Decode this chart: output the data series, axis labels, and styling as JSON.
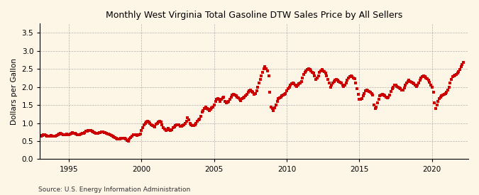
{
  "title": "Monthly West Virginia Total Gasoline DTW Sales Price by All Sellers",
  "ylabel": "Dollars per Gallon",
  "source": "Source: U.S. Energy Information Administration",
  "background_color": "#fdf5e6",
  "line_color": "#cc0000",
  "marker": "s",
  "markersize": 2.5,
  "xlim": [
    1993.0,
    2022.5
  ],
  "ylim": [
    0.0,
    3.75
  ],
  "yticks": [
    0.0,
    0.5,
    1.0,
    1.5,
    2.0,
    2.5,
    3.0,
    3.5
  ],
  "xticks": [
    1995,
    2000,
    2005,
    2010,
    2015,
    2020
  ],
  "dates": [
    1993.0,
    1993.083,
    1993.167,
    1993.25,
    1993.333,
    1993.417,
    1993.5,
    1993.583,
    1993.667,
    1993.75,
    1993.833,
    1993.917,
    1994.0,
    1994.083,
    1994.167,
    1994.25,
    1994.333,
    1994.417,
    1994.5,
    1994.583,
    1994.667,
    1994.75,
    1994.833,
    1994.917,
    1995.0,
    1995.083,
    1995.167,
    1995.25,
    1995.333,
    1995.417,
    1995.5,
    1995.583,
    1995.667,
    1995.75,
    1995.833,
    1995.917,
    1996.0,
    1996.083,
    1996.167,
    1996.25,
    1996.333,
    1996.417,
    1996.5,
    1996.583,
    1996.667,
    1996.75,
    1996.833,
    1996.917,
    1997.0,
    1997.083,
    1997.167,
    1997.25,
    1997.333,
    1997.417,
    1997.5,
    1997.583,
    1997.667,
    1997.75,
    1997.833,
    1997.917,
    1998.0,
    1998.083,
    1998.167,
    1998.25,
    1998.333,
    1998.417,
    1998.5,
    1998.583,
    1998.667,
    1998.75,
    1998.833,
    1998.917,
    1999.0,
    1999.083,
    1999.167,
    1999.25,
    1999.333,
    1999.417,
    1999.5,
    1999.583,
    1999.667,
    1999.75,
    1999.833,
    1999.917,
    2000.0,
    2000.083,
    2000.167,
    2000.25,
    2000.333,
    2000.417,
    2000.5,
    2000.583,
    2000.667,
    2000.75,
    2000.833,
    2000.917,
    2001.0,
    2001.083,
    2001.167,
    2001.25,
    2001.333,
    2001.417,
    2001.5,
    2001.583,
    2001.667,
    2001.75,
    2001.833,
    2001.917,
    2002.0,
    2002.083,
    2002.167,
    2002.25,
    2002.333,
    2002.417,
    2002.5,
    2002.583,
    2002.667,
    2002.75,
    2002.833,
    2002.917,
    2003.0,
    2003.083,
    2003.167,
    2003.25,
    2003.333,
    2003.417,
    2003.5,
    2003.583,
    2003.667,
    2003.75,
    2003.833,
    2003.917,
    2004.0,
    2004.083,
    2004.167,
    2004.25,
    2004.333,
    2004.417,
    2004.5,
    2004.583,
    2004.667,
    2004.75,
    2004.833,
    2004.917,
    2005.0,
    2005.083,
    2005.167,
    2005.25,
    2005.333,
    2005.417,
    2005.5,
    2005.583,
    2005.667,
    2005.75,
    2005.833,
    2005.917,
    2006.0,
    2006.083,
    2006.167,
    2006.25,
    2006.333,
    2006.417,
    2006.5,
    2006.583,
    2006.667,
    2006.75,
    2006.833,
    2006.917,
    2007.0,
    2007.083,
    2007.167,
    2007.25,
    2007.333,
    2007.417,
    2007.5,
    2007.583,
    2007.667,
    2007.75,
    2007.833,
    2007.917,
    2008.0,
    2008.083,
    2008.167,
    2008.25,
    2008.333,
    2008.417,
    2008.5,
    2008.583,
    2008.667,
    2008.75,
    2008.833,
    2008.917,
    2009.0,
    2009.083,
    2009.167,
    2009.25,
    2009.333,
    2009.417,
    2009.5,
    2009.583,
    2009.667,
    2009.75,
    2009.833,
    2009.917,
    2010.0,
    2010.083,
    2010.167,
    2010.25,
    2010.333,
    2010.417,
    2010.5,
    2010.583,
    2010.667,
    2010.75,
    2010.833,
    2010.917,
    2011.0,
    2011.083,
    2011.167,
    2011.25,
    2011.333,
    2011.417,
    2011.5,
    2011.583,
    2011.667,
    2011.75,
    2011.833,
    2011.917,
    2012.0,
    2012.083,
    2012.167,
    2012.25,
    2012.333,
    2012.417,
    2012.5,
    2012.583,
    2012.667,
    2012.75,
    2012.833,
    2012.917,
    2013.0,
    2013.083,
    2013.167,
    2013.25,
    2013.333,
    2013.417,
    2013.5,
    2013.583,
    2013.667,
    2013.75,
    2013.833,
    2013.917,
    2014.0,
    2014.083,
    2014.167,
    2014.25,
    2014.333,
    2014.417,
    2014.5,
    2014.583,
    2014.667,
    2014.75,
    2014.833,
    2014.917,
    2015.0,
    2015.083,
    2015.167,
    2015.25,
    2015.333,
    2015.417,
    2015.5,
    2015.583,
    2015.667,
    2015.75,
    2015.833,
    2015.917,
    2016.0,
    2016.083,
    2016.167,
    2016.25,
    2016.333,
    2016.417,
    2016.5,
    2016.583,
    2016.667,
    2016.75,
    2016.833,
    2016.917,
    2017.0,
    2017.083,
    2017.167,
    2017.25,
    2017.333,
    2017.417,
    2017.5,
    2017.583,
    2017.667,
    2017.75,
    2017.833,
    2017.917,
    2018.0,
    2018.083,
    2018.167,
    2018.25,
    2018.333,
    2018.417,
    2018.5,
    2018.583,
    2018.667,
    2018.75,
    2018.833,
    2018.917,
    2019.0,
    2019.083,
    2019.167,
    2019.25,
    2019.333,
    2019.417,
    2019.5,
    2019.583,
    2019.667,
    2019.75,
    2019.833,
    2019.917,
    2020.0,
    2020.083,
    2020.167,
    2020.25,
    2020.333,
    2020.417,
    2020.5,
    2020.583,
    2020.667,
    2020.75,
    2020.833,
    2020.917,
    2021.0,
    2021.083,
    2021.167,
    2021.25,
    2021.333,
    2021.417,
    2021.5,
    2021.583,
    2021.667,
    2021.75,
    2021.833,
    2021.917,
    2022.0,
    2022.083,
    2022.167
  ],
  "prices": [
    0.65,
    0.64,
    0.66,
    0.68,
    0.67,
    0.65,
    0.64,
    0.63,
    0.64,
    0.65,
    0.64,
    0.63,
    0.63,
    0.64,
    0.65,
    0.67,
    0.69,
    0.71,
    0.7,
    0.68,
    0.67,
    0.68,
    0.69,
    0.67,
    0.68,
    0.7,
    0.72,
    0.73,
    0.72,
    0.71,
    0.7,
    0.68,
    0.67,
    0.68,
    0.7,
    0.71,
    0.72,
    0.74,
    0.77,
    0.78,
    0.79,
    0.8,
    0.79,
    0.77,
    0.75,
    0.73,
    0.72,
    0.71,
    0.72,
    0.73,
    0.74,
    0.75,
    0.75,
    0.74,
    0.73,
    0.72,
    0.7,
    0.69,
    0.68,
    0.65,
    0.63,
    0.62,
    0.6,
    0.58,
    0.55,
    0.55,
    0.56,
    0.57,
    0.57,
    0.58,
    0.58,
    0.55,
    0.52,
    0.5,
    0.55,
    0.6,
    0.63,
    0.67,
    0.68,
    0.67,
    0.65,
    0.67,
    0.68,
    0.7,
    0.8,
    0.88,
    0.95,
    1.0,
    1.03,
    1.05,
    1.03,
    0.99,
    0.95,
    0.93,
    0.92,
    0.9,
    0.98,
    1.0,
    1.02,
    1.05,
    1.03,
    0.95,
    0.88,
    0.83,
    0.8,
    0.82,
    0.85,
    0.82,
    0.8,
    0.82,
    0.87,
    0.9,
    0.93,
    0.95,
    0.96,
    0.95,
    0.92,
    0.92,
    0.93,
    0.96,
    1.0,
    1.05,
    1.15,
    1.08,
    1.0,
    0.95,
    0.93,
    0.94,
    0.95,
    1.0,
    1.05,
    1.08,
    1.1,
    1.18,
    1.3,
    1.35,
    1.4,
    1.45,
    1.4,
    1.38,
    1.35,
    1.38,
    1.42,
    1.45,
    1.5,
    1.6,
    1.65,
    1.68,
    1.65,
    1.6,
    1.65,
    1.7,
    1.72,
    1.6,
    1.55,
    1.58,
    1.6,
    1.65,
    1.72,
    1.78,
    1.8,
    1.78,
    1.75,
    1.72,
    1.7,
    1.65,
    1.62,
    1.68,
    1.7,
    1.72,
    1.75,
    1.8,
    1.85,
    1.9,
    1.92,
    1.88,
    1.85,
    1.8,
    1.82,
    1.9,
    2.0,
    2.1,
    2.2,
    2.3,
    2.4,
    2.5,
    2.55,
    2.5,
    2.45,
    2.3,
    1.85,
    1.45,
    1.4,
    1.35,
    1.42,
    1.5,
    1.6,
    1.68,
    1.7,
    1.72,
    1.75,
    1.78,
    1.8,
    1.82,
    1.9,
    1.95,
    2.0,
    2.05,
    2.08,
    2.1,
    2.08,
    2.05,
    2.02,
    2.05,
    2.08,
    2.1,
    2.15,
    2.25,
    2.35,
    2.4,
    2.45,
    2.48,
    2.5,
    2.48,
    2.45,
    2.4,
    2.38,
    2.3,
    2.2,
    2.25,
    2.3,
    2.4,
    2.45,
    2.48,
    2.45,
    2.42,
    2.38,
    2.3,
    2.2,
    2.1,
    2.0,
    2.05,
    2.1,
    2.15,
    2.18,
    2.2,
    2.18,
    2.15,
    2.12,
    2.1,
    2.05,
    2.02,
    2.05,
    2.1,
    2.18,
    2.25,
    2.28,
    2.3,
    2.28,
    2.25,
    2.22,
    2.1,
    1.95,
    1.8,
    1.65,
    1.65,
    1.68,
    1.75,
    1.82,
    1.9,
    1.92,
    1.9,
    1.88,
    1.85,
    1.82,
    1.78,
    1.5,
    1.4,
    1.45,
    1.55,
    1.65,
    1.75,
    1.78,
    1.8,
    1.78,
    1.75,
    1.72,
    1.7,
    1.72,
    1.78,
    1.88,
    1.95,
    2.0,
    2.05,
    2.05,
    2.02,
    2.0,
    1.98,
    1.95,
    1.92,
    1.92,
    1.98,
    2.05,
    2.1,
    2.15,
    2.18,
    2.15,
    2.12,
    2.1,
    2.08,
    2.05,
    2.02,
    2.05,
    2.1,
    2.18,
    2.25,
    2.28,
    2.3,
    2.28,
    2.25,
    2.22,
    2.18,
    2.12,
    2.05,
    2.0,
    1.85,
    1.55,
    1.4,
    1.5,
    1.6,
    1.68,
    1.72,
    1.75,
    1.78,
    1.8,
    1.82,
    1.85,
    1.92,
    2.0,
    2.1,
    2.2,
    2.28,
    2.3,
    2.32,
    2.35,
    2.38,
    2.42,
    2.48,
    2.55,
    2.62,
    2.68
  ]
}
